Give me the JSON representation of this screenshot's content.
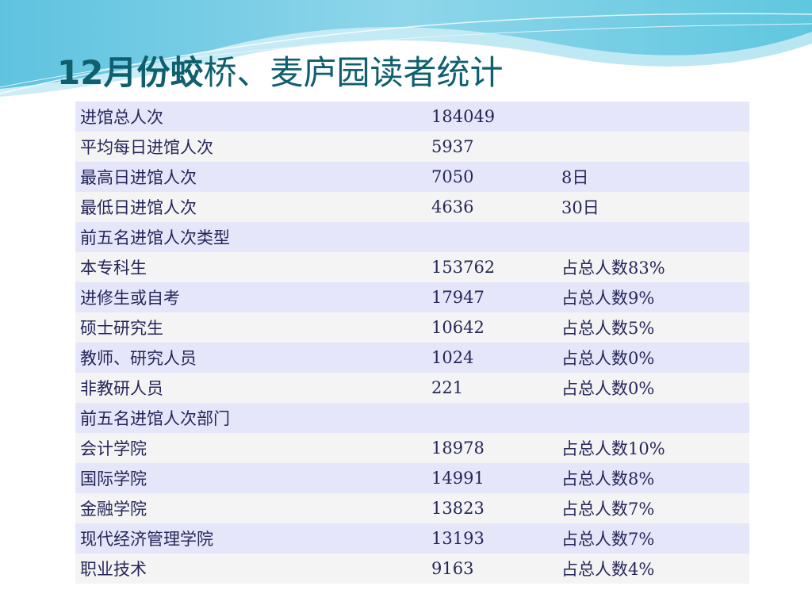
{
  "slide": {
    "title_bold": "12月份蛟",
    "title_rest": "桥、麦庐园读者统计",
    "accent_color": "#0f5f6f",
    "rows": [
      {
        "label": "进馆总人次",
        "value": "184049",
        "note": ""
      },
      {
        "label": "平均每日进馆人次",
        "value": "5937",
        "note": ""
      },
      {
        "label": "最高日进馆人次",
        "value": "7050",
        "note": "8日"
      },
      {
        "label": "最低日进馆人次",
        "value": "4636",
        "note": "30日"
      },
      {
        "label": "前五名进馆人次类型",
        "value": "",
        "note": ""
      },
      {
        "label": "本专科生",
        "value": "153762",
        "note": "占总人数83%"
      },
      {
        "label": "进修生或自考",
        "value": "17947",
        "note": "占总人数9%"
      },
      {
        "label": "硕士研究生",
        "value": "10642",
        "note": "占总人数5%"
      },
      {
        "label": "教师、研究人员",
        "value": "1024",
        "note": "占总人数0%"
      },
      {
        "label": "非教研人员",
        "value": "221",
        "note": "占总人数0%"
      },
      {
        "label": "前五名进馆人次部门",
        "value": "",
        "note": ""
      },
      {
        "label": "会计学院",
        "value": "18978",
        "note": "占总人数10%"
      },
      {
        "label": "国际学院",
        "value": "14991",
        "note": "占总人数8%"
      },
      {
        "label": "金融学院",
        "value": "13823",
        "note": "占总人数7%"
      },
      {
        "label": "现代经济管理学院",
        "value": "13193",
        "note": "占总人数7%"
      },
      {
        "label": "职业技术",
        "value": "9163",
        "note": "占总人数4%"
      }
    ]
  }
}
